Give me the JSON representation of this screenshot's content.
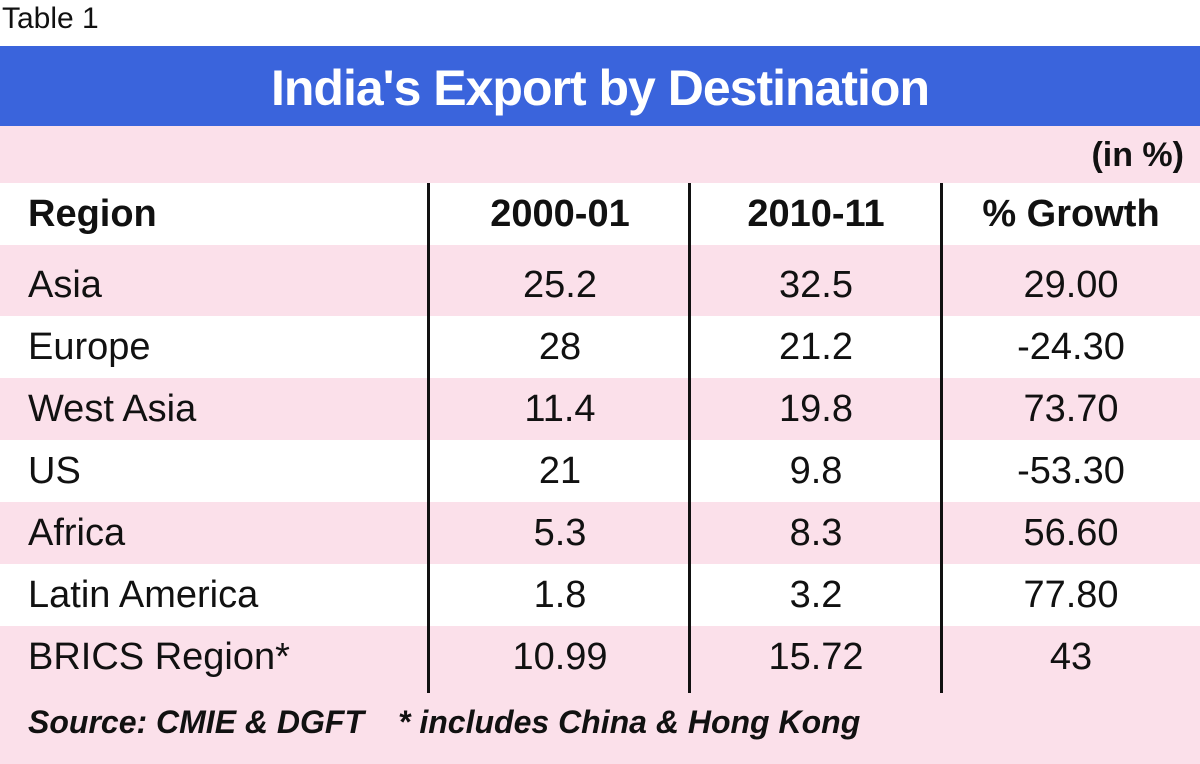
{
  "caption": "Table 1",
  "title": "India's Export  by Destination",
  "units": "(in %)",
  "chart_data": {
    "type": "table",
    "title": "India's Export  by Destination",
    "columns": [
      "Region",
      "2000-01",
      "2010-11",
      "% Growth"
    ],
    "rows": [
      {
        "region": "Asia",
        "v2000": "25.2",
        "v2010": "32.5",
        "growth": "29.00"
      },
      {
        "region": "Europe",
        "v2000": "28",
        "v2010": "21.2",
        "growth": "-24.30"
      },
      {
        "region": "West Asia",
        "v2000": "11.4",
        "v2010": "19.8",
        "growth": "73.70"
      },
      {
        "region": "US",
        "v2000": "21",
        "v2010": "9.8",
        "growth": "-53.30"
      },
      {
        "region": "Africa",
        "v2000": "5.3",
        "v2010": "8.3",
        "growth": "56.60"
      },
      {
        "region": "Latin America",
        "v2000": "1.8",
        "v2010": "3.2",
        "growth": "77.80"
      },
      {
        "region": "BRICS Region*",
        "v2000": "10.99",
        "v2010": "15.72",
        "growth": "43"
      }
    ]
  },
  "source": "Source: CMIE & DGFT",
  "footnote": "* includes China & Hong Kong",
  "colors": {
    "title_band": "#3a64dc",
    "pink": "#fbe0ea",
    "white": "#ffffff"
  }
}
